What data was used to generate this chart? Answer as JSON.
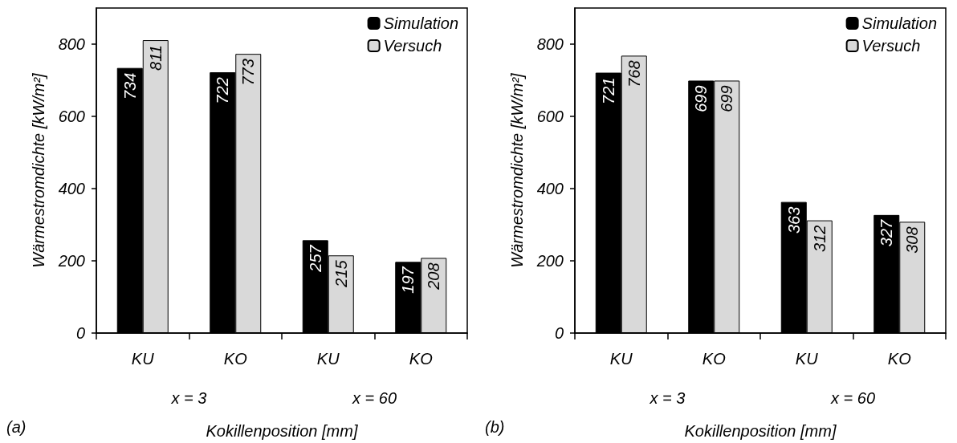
{
  "chart_data": [
    {
      "type": "bar",
      "categories": [
        "KU",
        "KO",
        "KU",
        "KO"
      ],
      "xlabel": "Kokillenposition [mm]",
      "ylabel": "Wärmestromdichte [kW/m²]",
      "series": [
        {
          "name": "Simulation",
          "color": "#000000",
          "values": [
            734,
            722,
            257,
            197
          ]
        },
        {
          "name": "Versuch",
          "color": "#d9d9d9",
          "values": [
            811,
            773,
            215,
            208
          ]
        }
      ],
      "ylim": [
        0,
        900
      ],
      "yticks": [
        0,
        200,
        400,
        600,
        800
      ],
      "grid": false,
      "legend": "top right",
      "data_labels": true,
      "annotations": [
        "x = 3",
        "x = 60",
        "(a)"
      ]
    },
    {
      "type": "bar",
      "categories": [
        "KU",
        "KO",
        "KU",
        "KO"
      ],
      "xlabel": "Kokillenposition [mm]",
      "ylabel": "Wärmestromdichte [kW/m²]",
      "series": [
        {
          "name": "Simulation",
          "color": "#000000",
          "values": [
            721,
            699,
            363,
            327
          ]
        },
        {
          "name": "Versuch",
          "color": "#d9d9d9",
          "values": [
            768,
            699,
            312,
            308
          ]
        }
      ],
      "ylim": [
        0,
        900
      ],
      "yticks": [
        0,
        200,
        400,
        600,
        800
      ],
      "grid": false,
      "legend": "top right",
      "data_labels": true,
      "annotations": [
        "x = 3",
        "x = 60",
        "(b)"
      ]
    }
  ]
}
